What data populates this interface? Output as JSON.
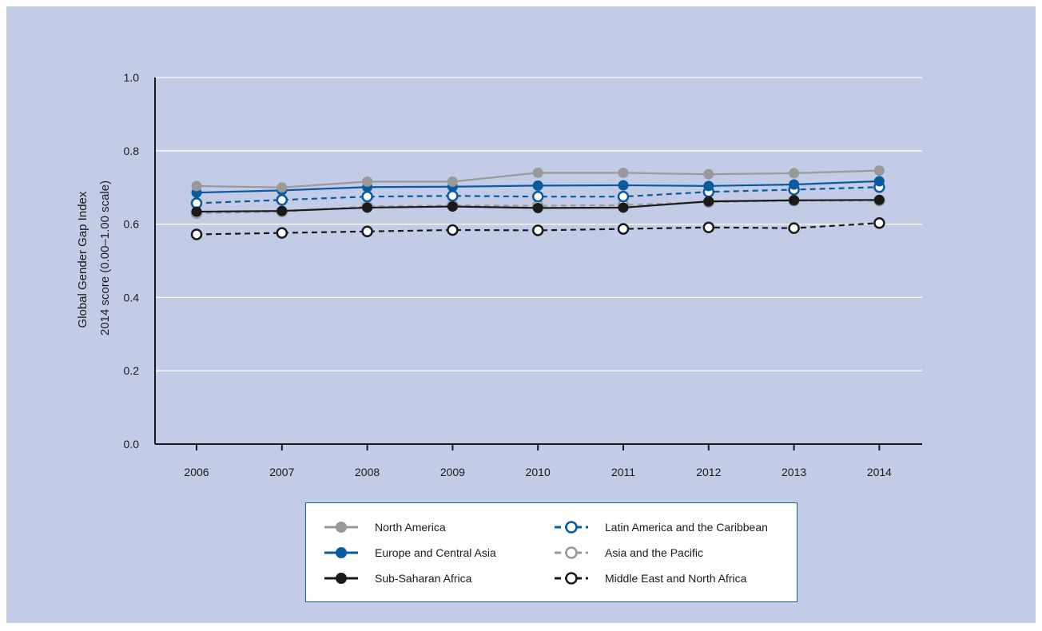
{
  "colors": {
    "background": "#c3cce6",
    "gridline": "#ffffff",
    "axis": "#1a1a1a",
    "legend_border": "#1a5ea0"
  },
  "chart_data": {
    "type": "line",
    "ylabel": "Global Gender Gap Index 2014 score (0.00–1.00 scale)",
    "ylabel_lines": [
      "Global Gender Gap Index",
      "2014 score (0.00–1.00 scale)"
    ],
    "ylim": [
      0,
      1
    ],
    "yticks": [
      "0.0",
      "0.2",
      "0.4",
      "0.6",
      "0.8",
      "1.0"
    ],
    "grid": true,
    "legend_position": "bottom",
    "x": [
      "2006",
      "2007",
      "2008",
      "2009",
      "2010",
      "2011",
      "2012",
      "2013",
      "2014"
    ],
    "series": [
      {
        "name": "North America",
        "color": "#999999",
        "dashed": false,
        "hollow": false,
        "values": [
          0.704,
          0.7,
          0.716,
          0.716,
          0.74,
          0.74,
          0.736,
          0.739,
          0.746
        ]
      },
      {
        "name": "Europe and Central Asia",
        "color": "#0a5aa0",
        "dashed": false,
        "hollow": false,
        "values": [
          0.686,
          0.692,
          0.701,
          0.702,
          0.705,
          0.706,
          0.704,
          0.708,
          0.717
        ]
      },
      {
        "name": "Sub-Saharan Africa",
        "color": "#1a1a1a",
        "dashed": false,
        "hollow": false,
        "values": [
          0.634,
          0.636,
          0.645,
          0.648,
          0.644,
          0.645,
          0.662,
          0.665,
          0.666
        ]
      },
      {
        "name": "Latin America and the Caribbean",
        "color": "#0a5aa0",
        "dashed": true,
        "hollow": true,
        "values": [
          0.657,
          0.666,
          0.675,
          0.677,
          0.675,
          0.675,
          0.688,
          0.694,
          0.701
        ]
      },
      {
        "name": "Asia and the Pacific",
        "color": "#999999",
        "dashed": true,
        "hollow": true,
        "values": [
          0.63,
          0.634,
          0.648,
          0.651,
          0.65,
          0.652,
          0.66,
          0.664,
          0.664
        ]
      },
      {
        "name": "Middle East and North Africa",
        "color": "#1a1a1a",
        "dashed": true,
        "hollow": true,
        "values": [
          0.572,
          0.576,
          0.58,
          0.584,
          0.583,
          0.587,
          0.591,
          0.589,
          0.603
        ]
      }
    ]
  }
}
